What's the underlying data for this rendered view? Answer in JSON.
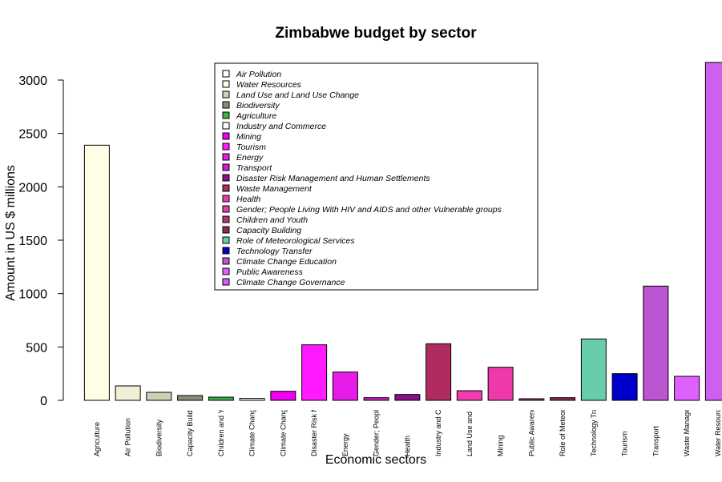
{
  "chart_data": {
    "type": "bar",
    "title": "Zimbabwe budget by sector",
    "xlabel": "Economic sectors",
    "ylabel": "Amount in US $ millions",
    "ylim": [
      0,
      3200
    ],
    "yticks": [
      0,
      500,
      1000,
      1500,
      2000,
      2500,
      3000
    ],
    "categories": [
      "Agriculture",
      "Air Pollution",
      "Biodiversity",
      "Capacity Building",
      "Children and Youth",
      "Climate Change Education",
      "Climate Change Governance",
      "Disaster Risk Management and Human Settlements",
      "Energy",
      "Gender; People Living With HIV and AIDS and other Vulnerable groups",
      "Health",
      "Industry and Commerce",
      "Land Use and Land Use Change",
      "Mining",
      "Public Awareness",
      "Role of Meteorological Services",
      "Technology Transfer",
      "Tourism",
      "Transport",
      "Waste Management",
      "Water Resources"
    ],
    "values": [
      2390,
      135,
      75,
      45,
      30,
      18,
      85,
      520,
      265,
      25,
      55,
      530,
      90,
      310,
      15,
      25,
      575,
      250,
      1070,
      225,
      3165
    ],
    "bar_colors": [
      "#FFFFE5",
      "#F0F0D8",
      "#CFCFB5",
      "#8C8C78",
      "#3CB04B",
      "#F7F7F7",
      "#F000F0",
      "#FF1AFF",
      "#E81CE8",
      "#D01FD0",
      "#88108A",
      "#B02C60",
      "#F03CB0",
      "#EE39AA",
      "#B03478",
      "#922858",
      "#66CCAA",
      "#0000CC",
      "#BB55D2",
      "#E060FF",
      "#CF5FEE"
    ],
    "legend": {
      "placement": "top-center",
      "entries": [
        {
          "label": "Air Pollution",
          "color": "#FFFFFF"
        },
        {
          "label": "Water Resources",
          "color": "#FFFFE5"
        },
        {
          "label": "Land Use and Land Use Change",
          "color": "#CFCFB5"
        },
        {
          "label": "Biodiversity",
          "color": "#8C8C78"
        },
        {
          "label": "Agriculture",
          "color": "#3CB04B"
        },
        {
          "label": "Industry and Commerce",
          "color": "#FFFFFF"
        },
        {
          "label": "Mining",
          "color": "#F000F0"
        },
        {
          "label": "Tourism",
          "color": "#FF1AFF"
        },
        {
          "label": "Energy",
          "color": "#E81CE8"
        },
        {
          "label": "Transport",
          "color": "#D01FD0"
        },
        {
          "label": "Disaster Risk Management and Human Settlements",
          "color": "#88108A"
        },
        {
          "label": "Waste Management",
          "color": "#B02C60"
        },
        {
          "label": "Health",
          "color": "#F03CB0"
        },
        {
          "label": "Gender; People Living With HIV and AIDS and other Vulnerable groups",
          "color": "#EE39AA"
        },
        {
          "label": "Children and Youth",
          "color": "#B03478"
        },
        {
          "label": "Capacity Building",
          "color": "#922858"
        },
        {
          "label": "Role of Meteorological Services",
          "color": "#66CCAA"
        },
        {
          "label": "Technology Transfer",
          "color": "#0000CC"
        },
        {
          "label": "Climate Change Education",
          "color": "#BB55D2"
        },
        {
          "label": "Public Awareness",
          "color": "#E060FF"
        },
        {
          "label": "Climate Change Governance",
          "color": "#CF5FEE"
        }
      ]
    },
    "grid": false
  }
}
